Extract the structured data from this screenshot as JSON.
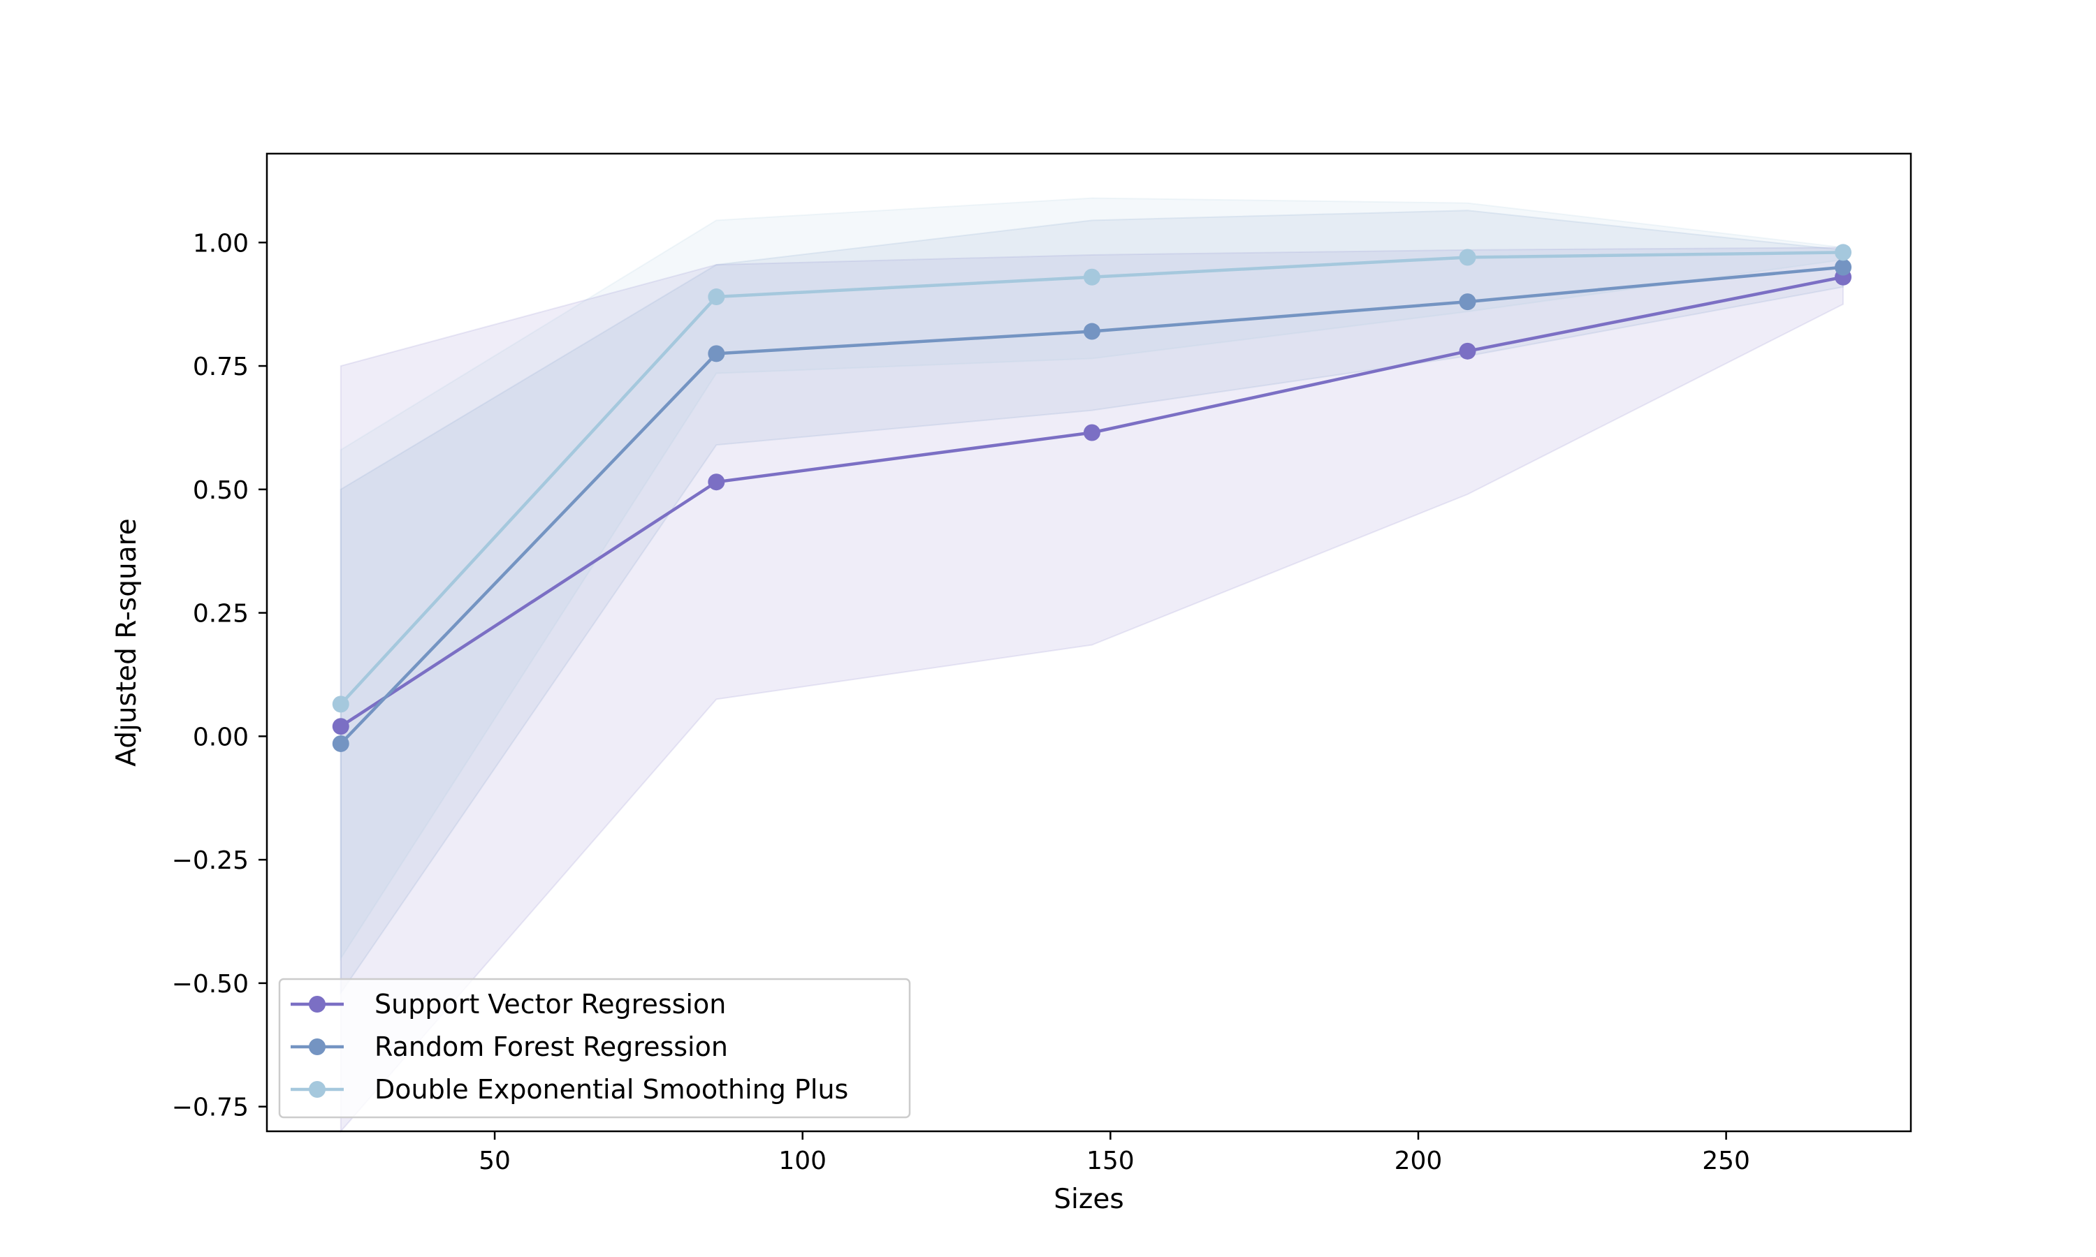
{
  "chart_data": {
    "type": "line",
    "title": "",
    "xlabel": "Sizes",
    "ylabel": "Adjusted R-square",
    "xlim": [
      13,
      280
    ],
    "ylim": [
      -0.8,
      1.18
    ],
    "xticks": [
      50,
      100,
      150,
      200,
      250
    ],
    "xtick_labels": [
      "50",
      "100",
      "150",
      "200",
      "250"
    ],
    "yticks": [
      -0.75,
      -0.5,
      -0.25,
      0.0,
      0.25,
      0.5,
      0.75,
      1.0
    ],
    "ytick_labels": [
      "−0.75",
      "−0.50",
      "−0.25",
      "0.00",
      "0.25",
      "0.50",
      "0.75",
      "1.00"
    ],
    "grid": false,
    "legend_position": "lower-left",
    "x": [
      25,
      86,
      147,
      208,
      269
    ],
    "series": [
      {
        "name": "Support Vector Regression",
        "color": "#7b6fc4",
        "values": [
          0.02,
          0.515,
          0.615,
          0.78,
          0.93
        ],
        "band_upper": [
          0.75,
          0.955,
          0.975,
          0.985,
          0.99
        ],
        "band_lower": [
          -0.8,
          0.075,
          0.185,
          0.49,
          0.875
        ]
      },
      {
        "name": "Random Forest Regression",
        "color": "#7494c2",
        "values": [
          -0.015,
          0.775,
          0.82,
          0.88,
          0.95
        ],
        "band_upper": [
          0.5,
          0.955,
          1.045,
          1.065,
          0.985
        ],
        "band_lower": [
          -0.52,
          0.59,
          0.66,
          0.77,
          0.91
        ]
      },
      {
        "name": "Double Exponential Smoothing Plus",
        "color": "#a5c8dd",
        "values": [
          0.065,
          0.89,
          0.93,
          0.97,
          0.98
        ],
        "band_upper": [
          0.58,
          1.045,
          1.09,
          1.08,
          0.99
        ],
        "band_lower": [
          -0.45,
          0.735,
          0.765,
          0.86,
          0.965
        ]
      }
    ]
  }
}
